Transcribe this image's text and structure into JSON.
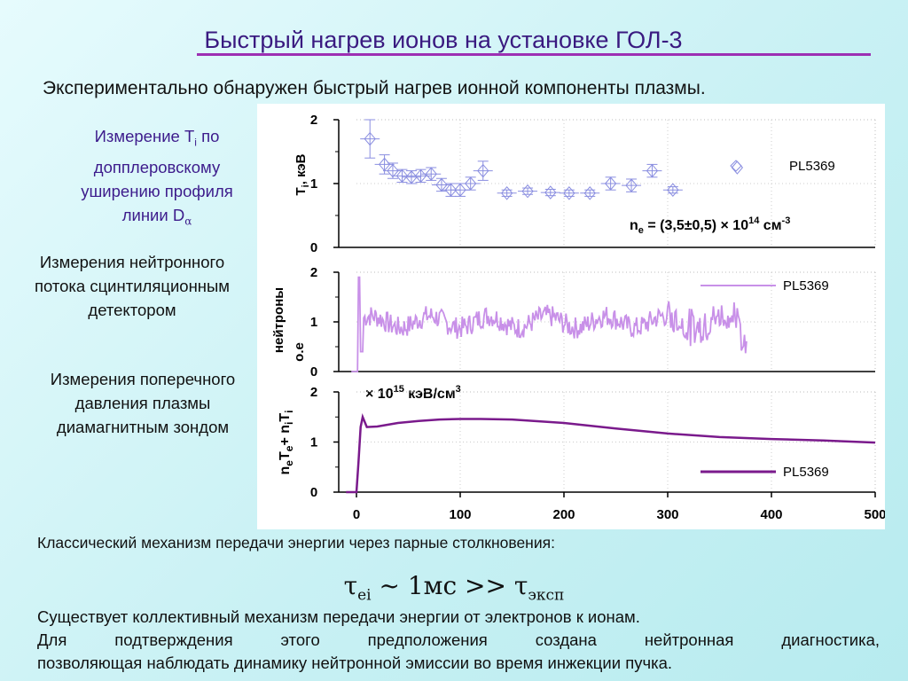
{
  "slide": {
    "title": "Быстрый нагрев ионов на установке ГОЛ-3",
    "subtitle": "Экспериментально обнаружен быстрый нагрев ионной компоненты плазмы.",
    "side_labels": {
      "ti_line1": "Измерение T",
      "ti_sub": "i",
      "ti_line1_tail": " по",
      "ti_line2": "допплеровскому",
      "ti_line3": "уширению профиля",
      "ti_line4": "линии D",
      "ti_line4_sub": "α",
      "neutron": [
        "Измерения нейтронного",
        "потока сцинтиляционным",
        "детектором"
      ],
      "pressure": [
        "Измерения поперечного",
        "давления плазмы",
        "диамагнитным зондом"
      ]
    },
    "classical_text": "Классический механизм передачи энергии через парные столкновения:",
    "formula": {
      "tau1": "τ",
      "sub1": "ei",
      "middle": " ~ 1мс >> ",
      "tau2": "τ",
      "sub2": "эксп"
    },
    "paragraph": [
      "Существует коллективный механизм передачи энергии от электронов к ионам.",
      "Для подтверждения этого предположения создана нейтронная диагностика,",
      "позволяющая наблюдать динамику нейтронной эмиссии во время инжекции пучка."
    ]
  },
  "chart_data": {
    "type": "line",
    "x_ticks": [
      "0",
      "100",
      "200",
      "300",
      "400",
      "500"
    ],
    "xlim": [
      0,
      500
    ],
    "panels": [
      {
        "name": "ion-temperature",
        "type": "scatter",
        "ylabel": "T",
        "ylabel_sub": "i",
        "ylabel_tail": ", кэВ",
        "y_ticks": [
          "0",
          "1",
          "2"
        ],
        "ylim": [
          0,
          2
        ],
        "legend": "PL5369",
        "annotation": {
          "prefix": "n",
          "prefix_sub": "e",
          "body": " = (3,5±0,5) × 10",
          "sup": "14",
          "unit": " см",
          "unit_sup": "-3"
        },
        "x": [
          13,
          27,
          35,
          44,
          53,
          62,
          72,
          82,
          91,
          100,
          110,
          122,
          145,
          165,
          187,
          205,
          225,
          245,
          265,
          285,
          305,
          367
        ],
        "y": [
          1.7,
          1.3,
          1.2,
          1.12,
          1.1,
          1.12,
          1.15,
          0.98,
          0.9,
          0.9,
          1.0,
          1.2,
          0.85,
          0.88,
          0.86,
          0.85,
          0.85,
          1.0,
          0.97,
          1.2,
          0.9,
          1.25
        ],
        "err": [
          0.3,
          0.15,
          0.12,
          0.1,
          0.1,
          0.1,
          0.1,
          0.1,
          0.1,
          0.1,
          0.1,
          0.15,
          0.05,
          0.05,
          0.05,
          0.05,
          0.05,
          0.1,
          0.1,
          0.1,
          0.05,
          0
        ]
      },
      {
        "name": "neutron-flux",
        "type": "line",
        "ylabel": "нейтроны",
        "ylabel2": "о.е",
        "y_ticks": [
          "0",
          "1",
          "2"
        ],
        "ylim": [
          0,
          2
        ],
        "legend": "PL5369",
        "x_start": -5,
        "x_end": 376,
        "base_level": 1.0
      },
      {
        "name": "diamagnetic-pressure",
        "type": "line",
        "ylabel": "n",
        "y_ticks": [
          "0",
          "1",
          "2"
        ],
        "ylim": [
          0,
          2
        ],
        "legend": "PL5369",
        "annotation": {
          "body": "× 10",
          "sup": "15",
          "unit": " кэВ/см",
          "unit_sup": "3"
        },
        "x": [
          -10,
          0,
          2,
          4,
          6,
          10,
          20,
          40,
          60,
          80,
          100,
          120,
          150,
          200,
          250,
          300,
          350,
          400,
          450,
          500
        ],
        "y": [
          0,
          0,
          0.6,
          1.3,
          1.5,
          1.3,
          1.31,
          1.38,
          1.42,
          1.45,
          1.46,
          1.46,
          1.45,
          1.38,
          1.27,
          1.17,
          1.1,
          1.06,
          1.03,
          0.99
        ]
      }
    ]
  },
  "colors": {
    "title": "#3a1a80",
    "rule": "#9d2fb3",
    "ti_markers": "#8a8ee0",
    "neutron_line": "#c890e8",
    "pressure_line": "#7a1a8c"
  }
}
